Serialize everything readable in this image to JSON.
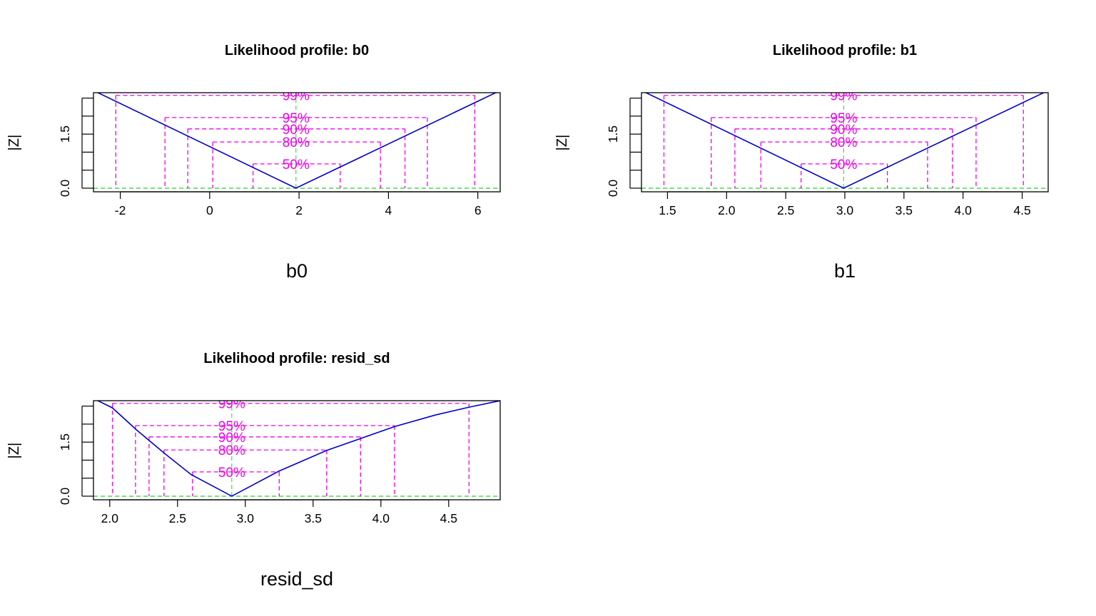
{
  "chart_data": [
    {
      "type": "line",
      "title": "Likelihood profile: b0",
      "xlabel": "b0",
      "ylabel": "|Z|",
      "xlim": [
        -2.6,
        6.5
      ],
      "ylim": [
        -0.1,
        2.65
      ],
      "x_ticks": [
        "-2",
        "0",
        "2",
        "4",
        "6"
      ],
      "y_ticks": [
        "0.0",
        "1.5"
      ],
      "y_minor_ticks": [
        0,
        0.5,
        1.0,
        1.5,
        2.0,
        2.5
      ],
      "mle": 1.93,
      "profile": [
        {
          "x": -2.6,
          "y": 2.71
        },
        {
          "x": 1.93,
          "y": 0
        },
        {
          "x": 6.5,
          "y": 2.71
        }
      ],
      "levels": [
        {
          "label": "99%",
          "z": 2.576,
          "lower": -2.1,
          "upper": 5.93
        },
        {
          "label": "95%",
          "z": 1.96,
          "lower": -1.0,
          "upper": 4.87
        },
        {
          "label": "90%",
          "z": 1.645,
          "lower": -0.49,
          "upper": 4.37
        },
        {
          "label": "80%",
          "z": 1.282,
          "lower": 0.07,
          "upper": 3.82
        },
        {
          "label": "50%",
          "z": 0.674,
          "lower": 0.97,
          "upper": 2.92
        }
      ],
      "colors": {
        "profile": "#0000cc",
        "levels": "#ee00ee",
        "reference": "#44dd44"
      }
    },
    {
      "type": "line",
      "title": "Likelihood profile: b1",
      "xlabel": "b1",
      "ylabel": "|Z|",
      "xlim": [
        1.28,
        4.72
      ],
      "ylim": [
        -0.1,
        2.65
      ],
      "x_ticks": [
        "1.5",
        "2.0",
        "2.5",
        "3.0",
        "3.5",
        "4.0",
        "4.5"
      ],
      "y_ticks": [
        "0.0",
        "1.5"
      ],
      "y_minor_ticks": [
        0,
        0.5,
        1.0,
        1.5,
        2.0,
        2.5
      ],
      "mle": 2.99,
      "profile": [
        {
          "x": 1.28,
          "y": 2.71
        },
        {
          "x": 2.99,
          "y": 0
        },
        {
          "x": 4.72,
          "y": 2.71
        }
      ],
      "levels": [
        {
          "label": "99%",
          "z": 2.576,
          "lower": 1.47,
          "upper": 4.51
        },
        {
          "label": "95%",
          "z": 1.96,
          "lower": 1.87,
          "upper": 4.11
        },
        {
          "label": "90%",
          "z": 1.645,
          "lower": 2.07,
          "upper": 3.91
        },
        {
          "label": "80%",
          "z": 1.282,
          "lower": 2.29,
          "upper": 3.7
        },
        {
          "label": "50%",
          "z": 0.674,
          "lower": 2.63,
          "upper": 3.36
        }
      ],
      "colors": {
        "profile": "#0000cc",
        "levels": "#ee00ee",
        "reference": "#44dd44"
      }
    },
    {
      "type": "line",
      "title": "Likelihood profile: resid_sd",
      "xlabel": "resid_sd",
      "ylabel": "|Z|",
      "xlim": [
        1.88,
        4.88
      ],
      "ylim": [
        -0.1,
        2.65
      ],
      "x_ticks": [
        "2.0",
        "2.5",
        "3.0",
        "3.5",
        "4.0",
        "4.5"
      ],
      "y_ticks": [
        "0.0",
        "1.5"
      ],
      "y_minor_ticks": [
        0,
        0.5,
        1.0,
        1.5,
        2.0,
        2.5
      ],
      "mle": 2.9,
      "profile": [
        {
          "x": 1.88,
          "y": 2.71
        },
        {
          "x": 2.02,
          "y": 2.45
        },
        {
          "x": 2.2,
          "y": 1.83
        },
        {
          "x": 2.4,
          "y": 1.2
        },
        {
          "x": 2.6,
          "y": 0.6
        },
        {
          "x": 2.9,
          "y": 0
        },
        {
          "x": 3.25,
          "y": 0.7
        },
        {
          "x": 3.6,
          "y": 1.27
        },
        {
          "x": 3.85,
          "y": 1.6
        },
        {
          "x": 4.1,
          "y": 1.93
        },
        {
          "x": 4.4,
          "y": 2.25
        },
        {
          "x": 4.65,
          "y": 2.47
        },
        {
          "x": 4.88,
          "y": 2.65
        }
      ],
      "levels": [
        {
          "label": "99%",
          "z": 2.576,
          "lower": 2.02,
          "upper": 4.65
        },
        {
          "label": "95%",
          "z": 1.96,
          "lower": 2.19,
          "upper": 4.1
        },
        {
          "label": "90%",
          "z": 1.645,
          "lower": 2.29,
          "upper": 3.85
        },
        {
          "label": "80%",
          "z": 1.282,
          "lower": 2.4,
          "upper": 3.6
        },
        {
          "label": "50%",
          "z": 0.674,
          "lower": 2.61,
          "upper": 3.25
        }
      ],
      "colors": {
        "profile": "#0000cc",
        "levels": "#ee00ee",
        "reference": "#44dd44"
      }
    }
  ]
}
